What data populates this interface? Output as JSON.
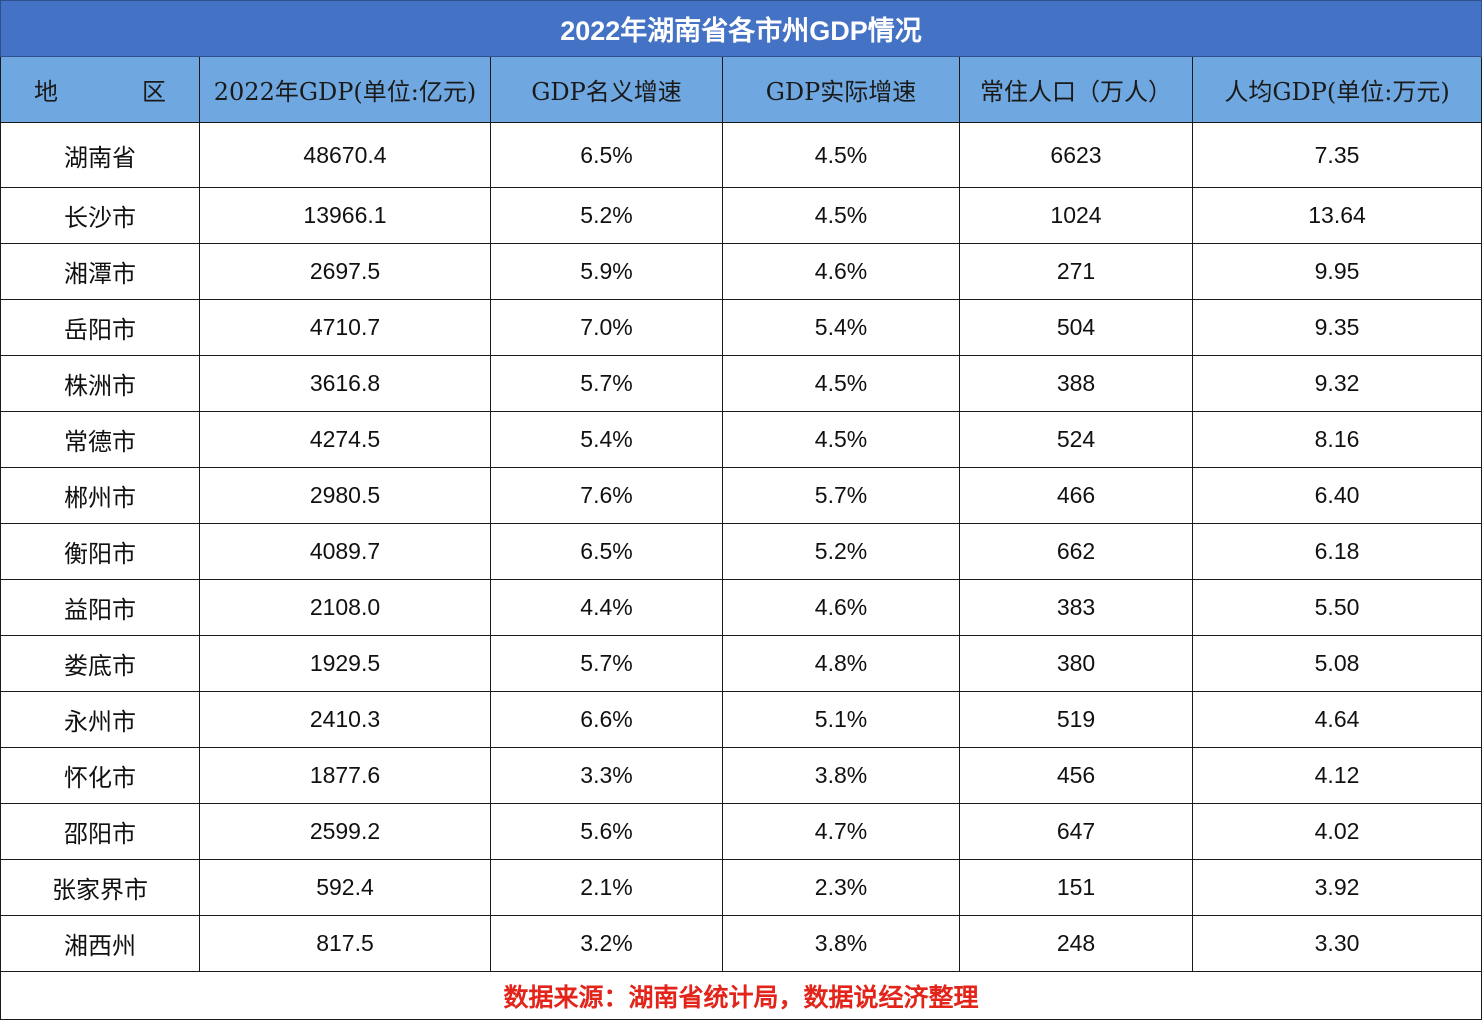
{
  "title": "2022年湖南省各市州GDP情况",
  "headers": [
    "地　区",
    "2022年GDP(单位:亿元)",
    "GDP名义增速",
    "GDP实际增速",
    "常住人口（万人）",
    "人均GDP(单位:万元)"
  ],
  "rows": [
    [
      "湖南省",
      "48670.4",
      "6.5%",
      "4.5%",
      "6623",
      "7.35"
    ],
    [
      "长沙市",
      "13966.1",
      "5.2%",
      "4.5%",
      "1024",
      "13.64"
    ],
    [
      "湘潭市",
      "2697.5",
      "5.9%",
      "4.6%",
      "271",
      "9.95"
    ],
    [
      "岳阳市",
      "4710.7",
      "7.0%",
      "5.4%",
      "504",
      "9.35"
    ],
    [
      "株洲市",
      "3616.8",
      "5.7%",
      "4.5%",
      "388",
      "9.32"
    ],
    [
      "常德市",
      "4274.5",
      "5.4%",
      "4.5%",
      "524",
      "8.16"
    ],
    [
      "郴州市",
      "2980.5",
      "7.6%",
      "5.7%",
      "466",
      "6.40"
    ],
    [
      "衡阳市",
      "4089.7",
      "6.5%",
      "5.2%",
      "662",
      "6.18"
    ],
    [
      "益阳市",
      "2108.0",
      "4.4%",
      "4.6%",
      "383",
      "5.50"
    ],
    [
      "娄底市",
      "1929.5",
      "5.7%",
      "4.8%",
      "380",
      "5.08"
    ],
    [
      "永州市",
      "2410.3",
      "6.6%",
      "5.1%",
      "519",
      "4.64"
    ],
    [
      "怀化市",
      "1877.6",
      "3.3%",
      "3.8%",
      "456",
      "4.12"
    ],
    [
      "邵阳市",
      "2599.2",
      "5.6%",
      "4.7%",
      "647",
      "4.02"
    ],
    [
      "张家界市",
      "592.4",
      "2.1%",
      "2.3%",
      "151",
      "3.92"
    ],
    [
      "湘西州",
      "817.5",
      "3.2%",
      "3.8%",
      "248",
      "3.30"
    ]
  ],
  "footer": "数据来源：湖南省统计局，数据说经济整理",
  "colors": {
    "title_bg": "#4472c4",
    "header_bg": "#6fa8e0",
    "footer_text": "#e3241b"
  }
}
